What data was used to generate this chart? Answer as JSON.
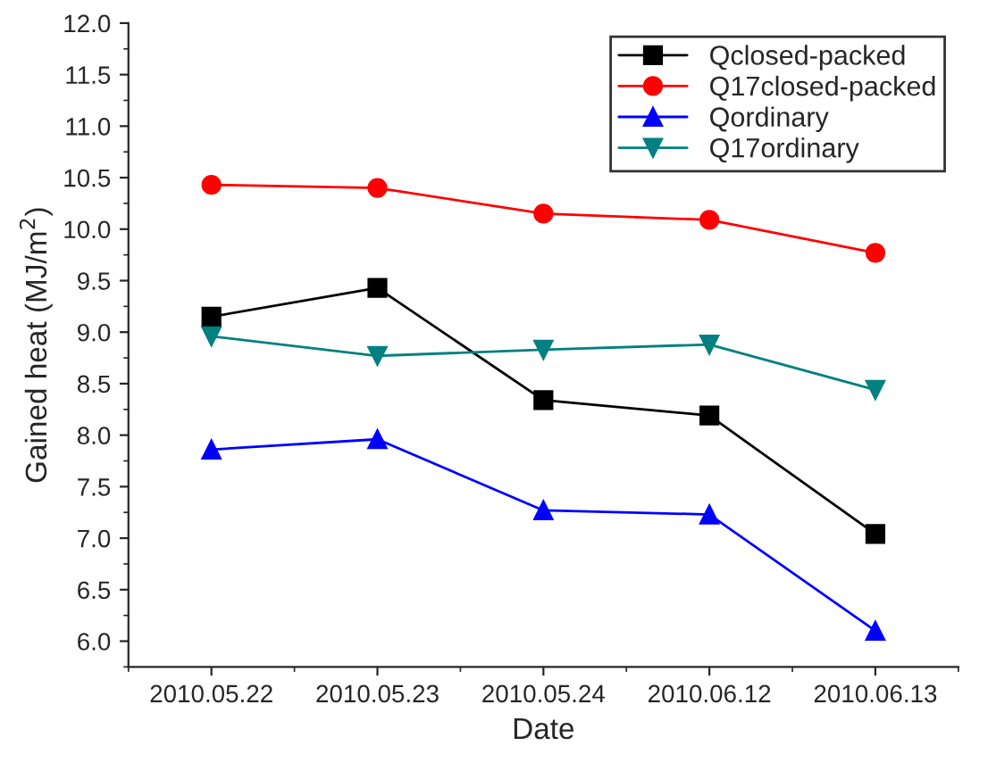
{
  "chart_data": {
    "type": "line",
    "xlabel": "Date",
    "ylabel": "Gained heat (MJ/m$^{2}$)",
    "categories": [
      "2010.05.22",
      "2010.05.23",
      "2010.05.24",
      "2010.06.12",
      "2010.06.13"
    ],
    "series": [
      {
        "name": "Qclosed-packed",
        "color": "#000000",
        "marker": "square",
        "values": [
          9.15,
          9.43,
          8.34,
          8.19,
          7.04
        ]
      },
      {
        "name": "Q17closed-packed",
        "color": "#ff0000",
        "marker": "circle",
        "values": [
          10.43,
          10.4,
          10.15,
          10.09,
          9.77
        ]
      },
      {
        "name": "Qordinary",
        "color": "#0000ff",
        "marker": "triangle",
        "values": [
          7.86,
          7.96,
          7.27,
          7.23,
          6.1
        ]
      },
      {
        "name": "Q17ordinary",
        "color": "#008080",
        "marker": "triangle_down",
        "values": [
          8.96,
          8.77,
          8.83,
          8.88,
          8.44
        ]
      }
    ],
    "ylim": [
      5.75,
      12.0
    ],
    "yticks": [
      {
        "value": 6,
        "label": "6.0"
      },
      {
        "value": 6.5,
        "label": "6.5"
      },
      {
        "value": 7,
        "label": "7.0"
      },
      {
        "value": 7.5,
        "label": "7.5"
      },
      {
        "value": 8,
        "label": "8.0"
      },
      {
        "value": 8.5,
        "label": "8.5"
      },
      {
        "value": 9,
        "label": "9.0"
      },
      {
        "value": 9.5,
        "label": "9.5"
      },
      {
        "value": 10,
        "label": "10.0"
      },
      {
        "value": 10.5,
        "label": "10.5"
      },
      {
        "value": 11,
        "label": "11.0"
      },
      {
        "value": 11.5,
        "label": "11.5"
      },
      {
        "value": 12,
        "label": "12.0"
      }
    ],
    "grid": false,
    "legend": "top right",
    "line_style": "solid"
  }
}
